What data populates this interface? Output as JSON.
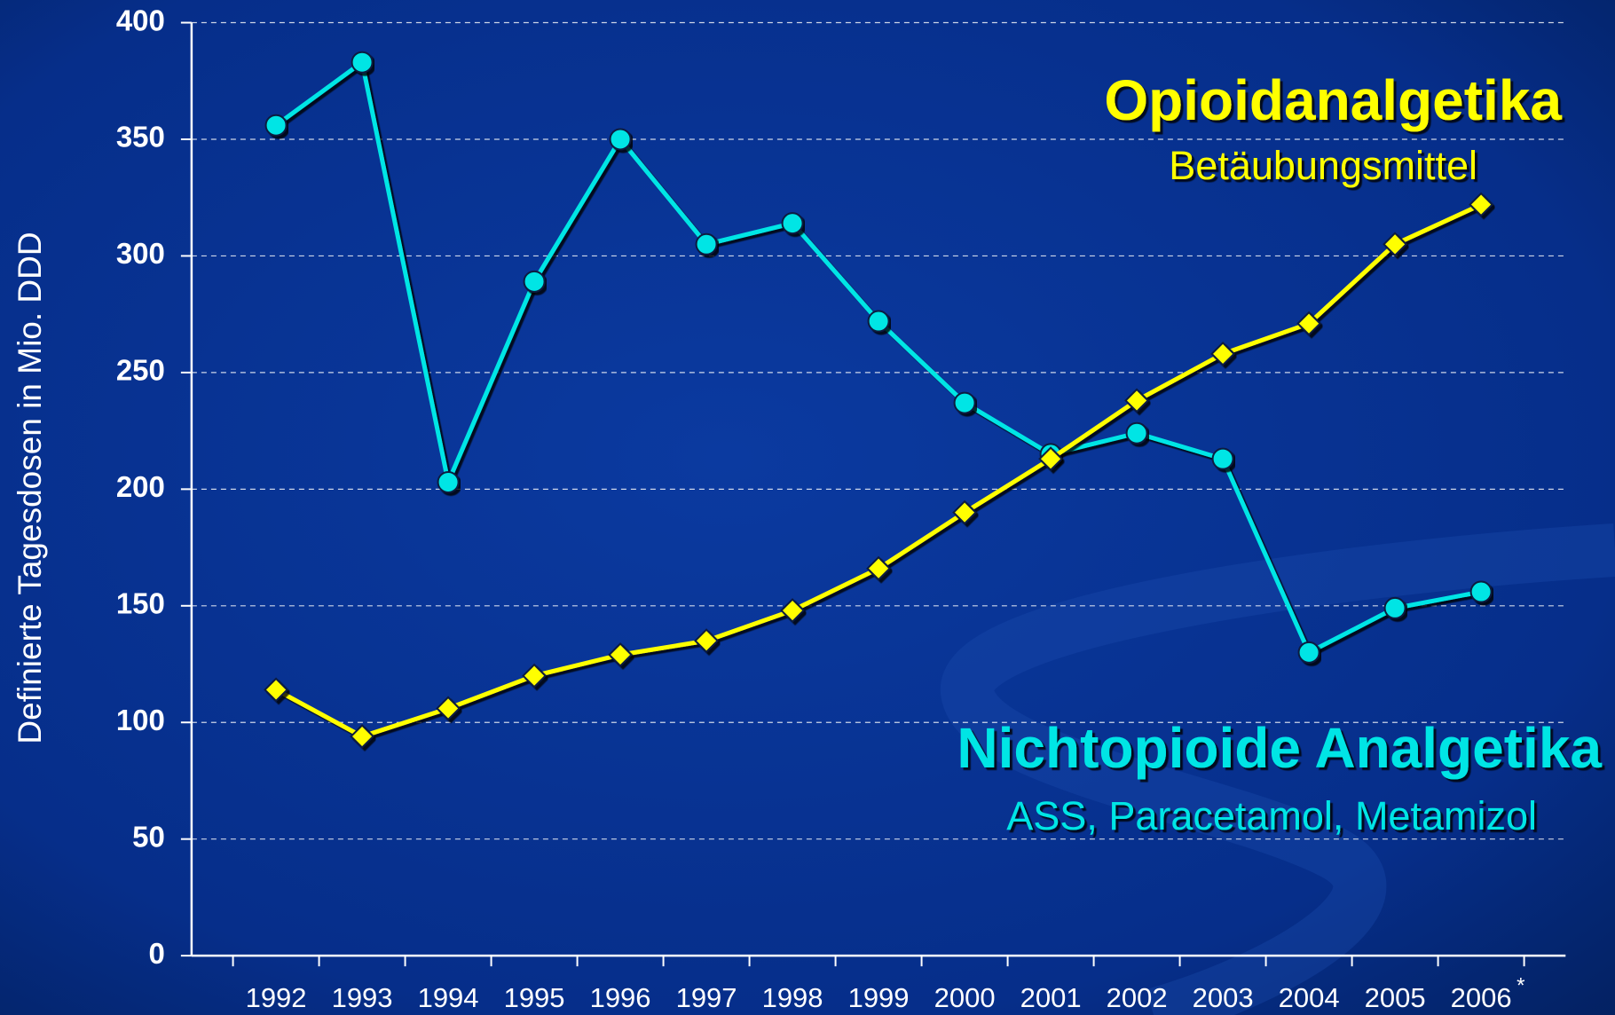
{
  "chart_data": {
    "type": "line",
    "ylabel": "Definierte Tagesdosen in  Mio. DDD",
    "categories": [
      "1992",
      "1993",
      "1994",
      "1995",
      "1996",
      "1997",
      "1998",
      "1999",
      "2000",
      "2001",
      "2002",
      "2003",
      "2004",
      "2005",
      "2006"
    ],
    "note": "*",
    "series": [
      {
        "name": "Nichtopioide Analgetika",
        "description": "ASS, Paracetamol, Metamizol",
        "color": "#00e5e5",
        "marker": "circle",
        "values": [
          356,
          383,
          203,
          289,
          350,
          305,
          314,
          272,
          237,
          215,
          224,
          213,
          130,
          149,
          156
        ]
      },
      {
        "name": "Opioidanalgetika",
        "description": "Betäubungsmittel",
        "color": "#ffff00",
        "marker": "diamond",
        "values": [
          114,
          94,
          106,
          120,
          129,
          135,
          148,
          166,
          190,
          213,
          238,
          258,
          271,
          305,
          322
        ]
      }
    ],
    "ylim": [
      0,
      400
    ],
    "yticks": [
      0,
      50,
      100,
      150,
      200,
      250,
      300,
      350,
      400
    ],
    "grid": true
  }
}
